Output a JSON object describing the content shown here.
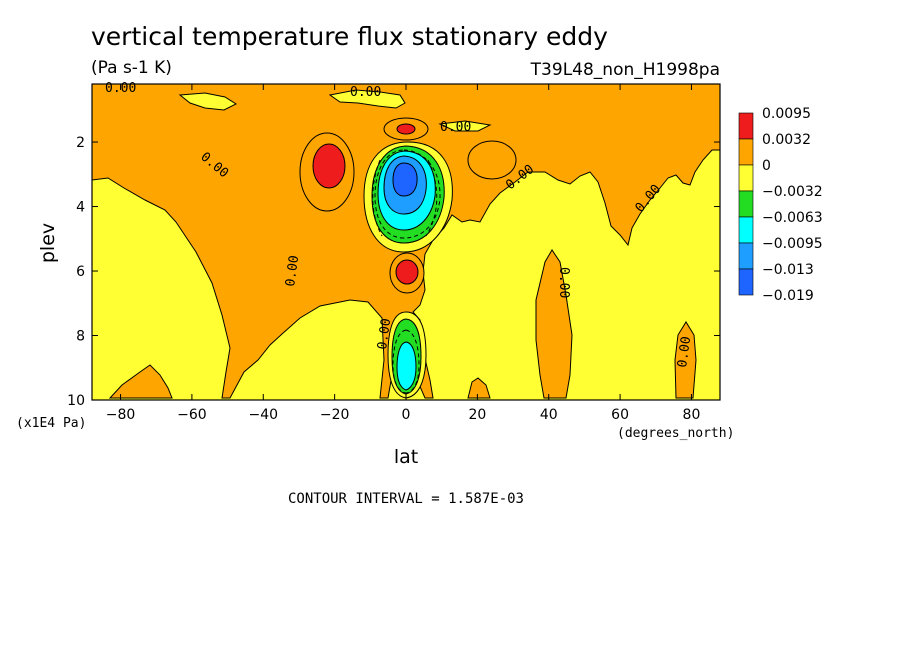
{
  "chart_data": {
    "type": "heatmap",
    "subtype": "filled-contour",
    "title": "vertical temperature flux stationary eddy",
    "units": "(Pa s-1 K)",
    "dataset": "T39L48_non_H1998pa",
    "xlabel": "lat",
    "ylabel": "plev",
    "x_unit": "(degrees_north)",
    "y_unit": "(x1E4 Pa)",
    "xlim": [
      -88,
      88
    ],
    "ylim": [
      10,
      0.2
    ],
    "y_reversed": true,
    "x_ticks": [
      -80,
      -60,
      -40,
      -20,
      0,
      20,
      40,
      60,
      80
    ],
    "x_tick_labels": [
      "-80",
      "-60",
      "-40",
      "-20",
      "0",
      "20",
      "40",
      "60",
      "80"
    ],
    "y_ticks": [
      2,
      4,
      6,
      8,
      10
    ],
    "y_tick_labels": [
      "2",
      "4",
      "6",
      "8",
      "10"
    ],
    "contour_interval_label": "CONTOUR INTERVAL = 1.587E-03",
    "contour_labels": [
      "0.00",
      "0.00",
      "0.00",
      "0.00",
      "0.00",
      "0.00",
      "0.00",
      "0.00",
      "0.00",
      "0.00"
    ],
    "legend_position": "right",
    "legend": {
      "levels": [
        "0.0095",
        "0.0032",
        "0",
        "-0.0032",
        "-0.0063",
        "-0.0095",
        "-0.013",
        "-0.019"
      ],
      "colors": [
        "#ee1c1c",
        "#ffa500",
        "#ffff33",
        "#22dd22",
        "#00ffff",
        "#1e9fff",
        "#1e64ff"
      ]
    },
    "colors": {
      "strong_positive": "#ee1c1c",
      "positive": "#ffa500",
      "near_zero_negative": "#ffff33",
      "negative": "#22dd22",
      "more_negative": "#00ffff",
      "strong_negative": "#1e9fff",
      "most_negative": "#1e64ff"
    },
    "features": [
      {
        "name": "positive band upper troposphere",
        "lat_range": [
          -88,
          88
        ],
        "plev_range": [
          0.2,
          3.0
        ],
        "class": "positive"
      },
      {
        "name": "positive column",
        "lat_range": [
          -30,
          15
        ],
        "plev_range": [
          3,
          8
        ],
        "class": "positive"
      },
      {
        "name": "positive tongue",
        "lat_range": [
          -90,
          -80
        ],
        "plev_range": [
          2,
          3
        ],
        "class": "positive"
      },
      {
        "name": "positive tongue",
        "lat_range": [
          -45,
          -33
        ],
        "plev_range": [
          2,
          7
        ],
        "class": "positive"
      },
      {
        "name": "positive tongue",
        "lat_range": [
          -12,
          -3
        ],
        "plev_range": [
          7,
          9.5
        ],
        "class": "positive"
      },
      {
        "name": "positive tongue",
        "lat_range": [
          43,
          50
        ],
        "plev_range": [
          6,
          10
        ],
        "class": "positive"
      },
      {
        "name": "positive tongue",
        "lat_range": [
          80,
          86
        ],
        "plev_range": [
          7.5,
          9.5
        ],
        "class": "positive"
      },
      {
        "name": "positive tongue",
        "lat_range": [
          -80,
          -67
        ],
        "plev_range": [
          9,
          10
        ],
        "class": "positive"
      },
      {
        "name": "positive tongue",
        "lat_range": [
          22,
          25
        ],
        "plev_range": [
          9,
          10
        ],
        "class": "positive"
      },
      {
        "name": "positive max",
        "lat": -22,
        "plev": 2.6,
        "class": "strong_positive"
      },
      {
        "name": "positive max",
        "lat": 0,
        "plev": 1.5,
        "class": "strong_positive"
      },
      {
        "name": "positive max",
        "lat": 0,
        "plev": 6.0,
        "class": "strong_positive"
      },
      {
        "name": "negative cell",
        "lat": 0,
        "plev": 3.2,
        "minimum_class": "most_negative"
      },
      {
        "name": "negative cell",
        "lat": 0,
        "plev": 9.0,
        "minimum_class": "more_negative"
      }
    ]
  }
}
